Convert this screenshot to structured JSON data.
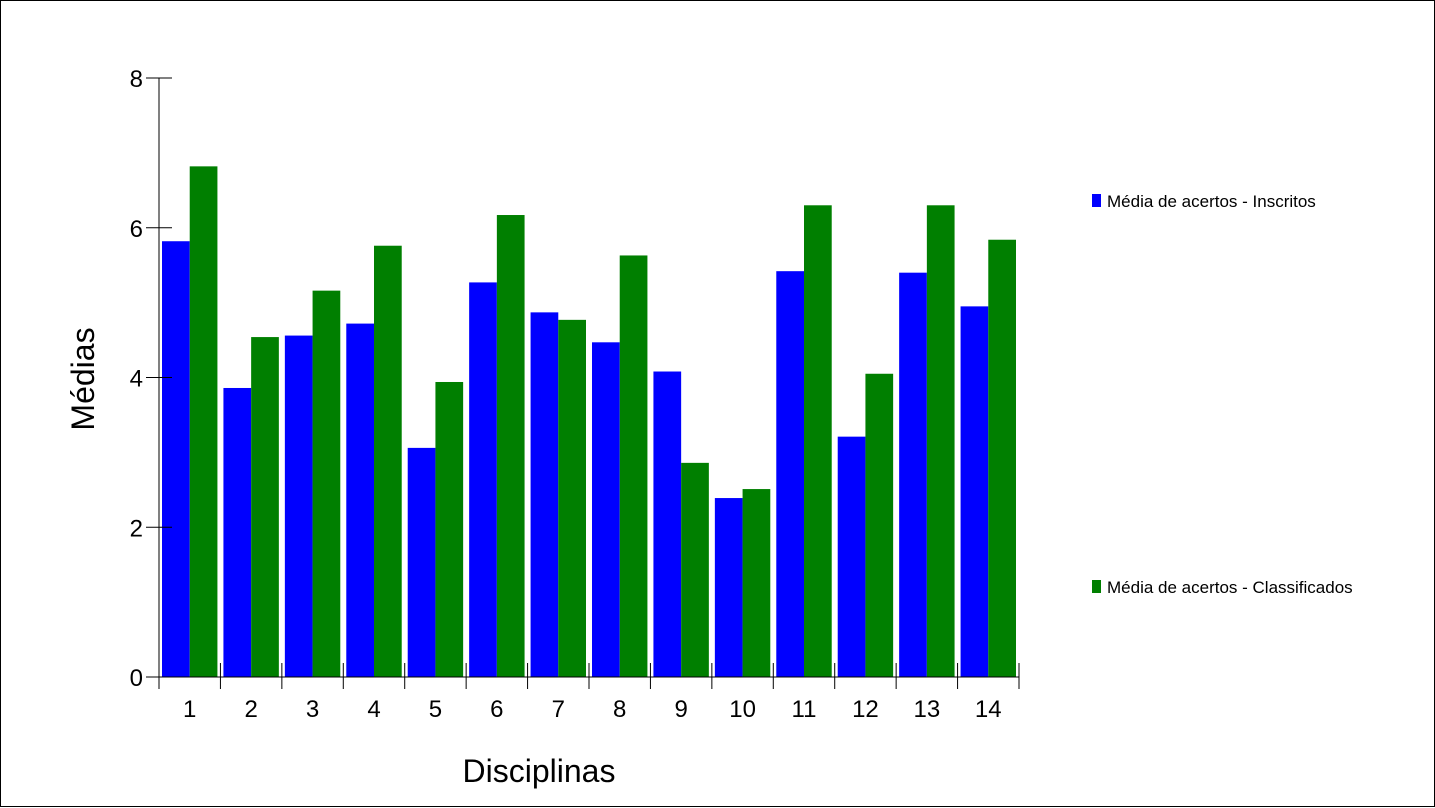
{
  "chart_data": {
    "type": "bar",
    "xlabel": "Disciplinas",
    "ylabel": "Médias",
    "ylim": [
      0,
      8
    ],
    "yticks": [
      "0",
      "2",
      "4",
      "6",
      "8"
    ],
    "categories": [
      "1",
      "2",
      "3",
      "4",
      "5",
      "6",
      "7",
      "8",
      "9",
      "10",
      "11",
      "12",
      "13",
      "14"
    ],
    "series": [
      {
        "name": "Média de acertos - Inscritos",
        "color": "#0000ff",
        "values": [
          5.82,
          3.86,
          4.56,
          4.72,
          3.06,
          5.27,
          4.87,
          4.47,
          4.08,
          2.39,
          5.42,
          3.21,
          5.4,
          4.95
        ]
      },
      {
        "name": "Média de acertos - Classificados",
        "color": "#007f00",
        "values": [
          6.82,
          4.54,
          5.16,
          5.76,
          3.94,
          6.17,
          4.77,
          5.63,
          2.86,
          2.51,
          6.3,
          4.05,
          6.3,
          5.84
        ]
      }
    ],
    "grid": false,
    "legend_position": "right"
  }
}
